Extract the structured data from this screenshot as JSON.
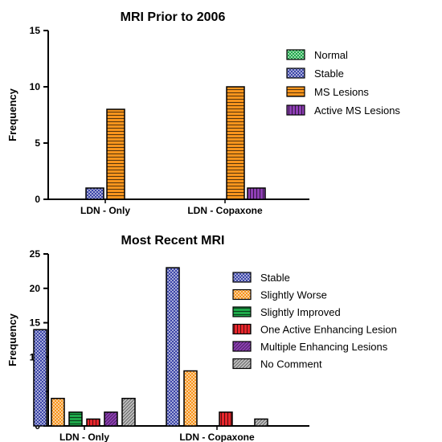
{
  "chart_data": [
    {
      "type": "bar",
      "title": "MRI Prior to 2006",
      "ylabel": "Frequency",
      "ylim": [
        0,
        15
      ],
      "yticks": [
        0,
        5,
        10,
        15
      ],
      "categories": [
        "LDN - Only",
        "LDN - Copaxone"
      ],
      "legend_position": "right",
      "series": [
        {
          "name": "Normal",
          "values": [
            0,
            0
          ],
          "color": "#1ea84a",
          "pattern": "checker"
        },
        {
          "name": "Stable",
          "values": [
            1,
            0
          ],
          "color": "#3b45a8",
          "pattern": "checker"
        },
        {
          "name": "MS Lesions",
          "values": [
            8,
            10
          ],
          "color": "#f7941d",
          "pattern": "hlines"
        },
        {
          "name": "Active MS Lesions",
          "values": [
            0,
            1
          ],
          "color": "#8e3fb5",
          "pattern": "vlines"
        }
      ]
    },
    {
      "type": "bar",
      "title": "Most Recent MRI",
      "ylabel": "Frequency",
      "ylim": [
        0,
        25
      ],
      "yticks": [
        0,
        5,
        10,
        15,
        20,
        25
      ],
      "categories": [
        "LDN - Only",
        "LDN - Copaxone"
      ],
      "legend_position": "right",
      "series": [
        {
          "name": "Stable",
          "values": [
            14,
            23
          ],
          "color": "#3b45a8",
          "pattern": "checker"
        },
        {
          "name": "Slightly Worse",
          "values": [
            4,
            8
          ],
          "color": "#f7941d",
          "pattern": "checker"
        },
        {
          "name": "Slightly Improved",
          "values": [
            2,
            0
          ],
          "color": "#1ea84a",
          "pattern": "hlines"
        },
        {
          "name": "One Active Enhancing Lesion",
          "values": [
            1,
            2
          ],
          "color": "#e8262c",
          "pattern": "vlines"
        },
        {
          "name": "Multiple Enhancing Lesions",
          "values": [
            2,
            0
          ],
          "color": "#8e3fb5",
          "pattern": "diag"
        },
        {
          "name": "No Comment",
          "values": [
            4,
            1
          ],
          "color": "#bfbfbf",
          "pattern": "diag"
        }
      ]
    }
  ]
}
